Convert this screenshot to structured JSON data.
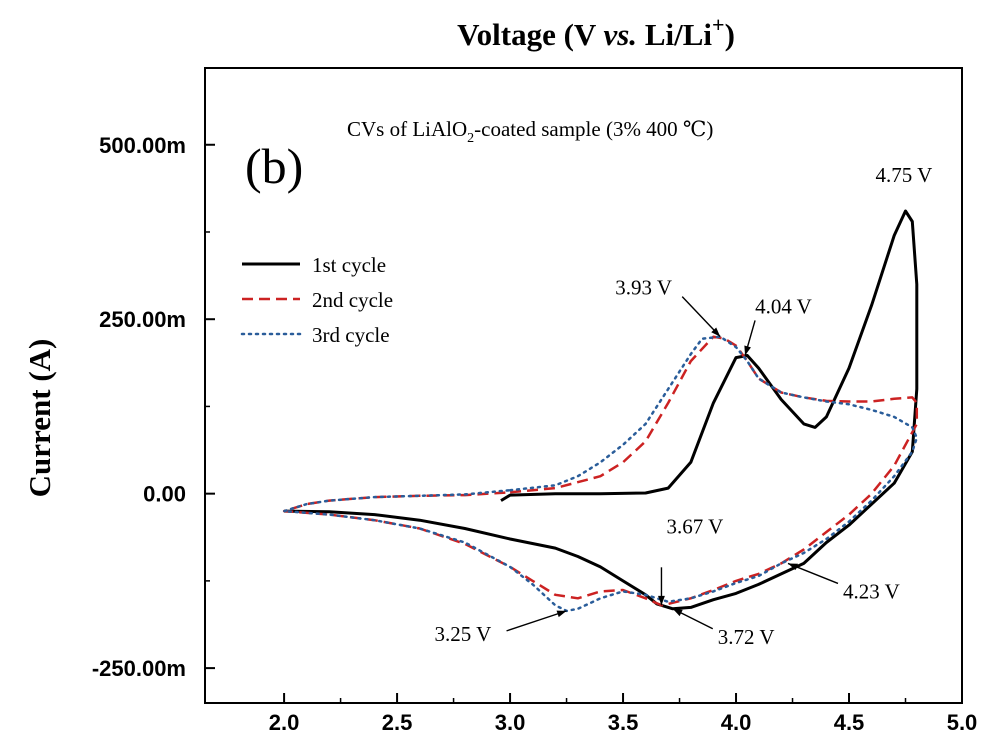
{
  "chart_data": {
    "type": "line",
    "panel_label": "(b)",
    "title_parts": [
      "CVs of LiAlO",
      "2",
      "-coated sample (3% 400 ℃)"
    ],
    "xlabel": "",
    "top_label_parts": [
      "Voltage (V ",
      "vs.",
      " Li/Li",
      "+",
      ")"
    ],
    "ylabel": "Current (A)",
    "xlim": [
      1.65,
      5.0
    ],
    "ylim": [
      -300,
      610
    ],
    "x_ticks": [
      2.0,
      2.5,
      3.0,
      3.5,
      4.0,
      4.5,
      5.0
    ],
    "x_tick_labels": [
      "2.0",
      "2.5",
      "3.0",
      "3.5",
      "4.0",
      "4.5",
      "5.0"
    ],
    "y_ticks": [
      -250,
      0,
      250,
      500
    ],
    "y_tick_labels": [
      "-250.00m",
      "0.00",
      "250.00m",
      "500.00m"
    ],
    "legend": {
      "placement": "upper-left"
    },
    "series": [
      {
        "name": "1st cycle",
        "color": "#000000",
        "style": "solid",
        "points": [
          [
            2.96,
            -10
          ],
          [
            3.0,
            -2
          ],
          [
            3.2,
            0
          ],
          [
            3.4,
            0
          ],
          [
            3.6,
            1
          ],
          [
            3.7,
            8
          ],
          [
            3.8,
            45
          ],
          [
            3.9,
            130
          ],
          [
            4.0,
            195
          ],
          [
            4.05,
            198
          ],
          [
            4.1,
            180
          ],
          [
            4.2,
            135
          ],
          [
            4.3,
            100
          ],
          [
            4.35,
            95
          ],
          [
            4.4,
            110
          ],
          [
            4.5,
            180
          ],
          [
            4.6,
            270
          ],
          [
            4.7,
            370
          ],
          [
            4.75,
            405
          ],
          [
            4.78,
            390
          ],
          [
            4.8,
            300
          ],
          [
            4.8,
            150
          ],
          [
            4.78,
            60
          ],
          [
            4.7,
            15
          ],
          [
            4.6,
            -15
          ],
          [
            4.5,
            -45
          ],
          [
            4.4,
            -70
          ],
          [
            4.3,
            -100
          ],
          [
            4.2,
            -115
          ],
          [
            4.1,
            -130
          ],
          [
            4.0,
            -143
          ],
          [
            3.9,
            -152
          ],
          [
            3.8,
            -163
          ],
          [
            3.72,
            -165
          ],
          [
            3.65,
            -158
          ],
          [
            3.6,
            -145
          ],
          [
            3.5,
            -125
          ],
          [
            3.4,
            -105
          ],
          [
            3.3,
            -90
          ],
          [
            3.2,
            -78
          ],
          [
            3.0,
            -65
          ],
          [
            2.8,
            -50
          ],
          [
            2.6,
            -38
          ],
          [
            2.4,
            -30
          ],
          [
            2.2,
            -26
          ],
          [
            2.0,
            -25
          ]
        ]
      },
      {
        "name": "2nd cycle",
        "color": "#cc2222",
        "style": "dashed",
        "points": [
          [
            3.0,
            2
          ],
          [
            3.2,
            8
          ],
          [
            3.4,
            25
          ],
          [
            3.5,
            45
          ],
          [
            3.6,
            75
          ],
          [
            3.7,
            130
          ],
          [
            3.8,
            190
          ],
          [
            3.9,
            225
          ],
          [
            3.95,
            222
          ],
          [
            4.0,
            212
          ],
          [
            4.05,
            190
          ],
          [
            4.1,
            165
          ],
          [
            4.2,
            145
          ],
          [
            4.3,
            138
          ],
          [
            4.4,
            133
          ],
          [
            4.5,
            132
          ],
          [
            4.6,
            132
          ],
          [
            4.7,
            136
          ],
          [
            4.78,
            138
          ],
          [
            4.8,
            130
          ],
          [
            4.8,
            100
          ],
          [
            4.7,
            40
          ],
          [
            4.6,
            0
          ],
          [
            4.5,
            -30
          ],
          [
            4.4,
            -55
          ],
          [
            4.3,
            -80
          ],
          [
            4.2,
            -100
          ],
          [
            4.1,
            -115
          ],
          [
            4.0,
            -125
          ],
          [
            3.9,
            -138
          ],
          [
            3.8,
            -150
          ],
          [
            3.7,
            -158
          ],
          [
            3.67,
            -160
          ],
          [
            3.6,
            -150
          ],
          [
            3.5,
            -138
          ],
          [
            3.4,
            -140
          ],
          [
            3.3,
            -150
          ],
          [
            3.2,
            -145
          ],
          [
            3.1,
            -125
          ],
          [
            3.0,
            -105
          ],
          [
            2.8,
            -72
          ],
          [
            2.6,
            -50
          ],
          [
            2.4,
            -38
          ],
          [
            2.2,
            -30
          ],
          [
            2.0,
            -25
          ],
          [
            2.1,
            -15
          ],
          [
            2.2,
            -10
          ],
          [
            2.4,
            -5
          ],
          [
            2.6,
            -3
          ],
          [
            2.8,
            -2
          ],
          [
            3.0,
            2
          ]
        ]
      },
      {
        "name": "3rd cycle",
        "color": "#2a5d9a",
        "style": "dotted",
        "points": [
          [
            3.0,
            5
          ],
          [
            3.2,
            12
          ],
          [
            3.3,
            25
          ],
          [
            3.4,
            45
          ],
          [
            3.5,
            70
          ],
          [
            3.6,
            100
          ],
          [
            3.7,
            150
          ],
          [
            3.8,
            200
          ],
          [
            3.85,
            222
          ],
          [
            3.93,
            225
          ],
          [
            4.0,
            210
          ],
          [
            4.05,
            190
          ],
          [
            4.1,
            165
          ],
          [
            4.2,
            145
          ],
          [
            4.3,
            138
          ],
          [
            4.4,
            132
          ],
          [
            4.5,
            128
          ],
          [
            4.6,
            120
          ],
          [
            4.7,
            110
          ],
          [
            4.78,
            95
          ],
          [
            4.8,
            80
          ],
          [
            4.78,
            60
          ],
          [
            4.7,
            25
          ],
          [
            4.6,
            -10
          ],
          [
            4.5,
            -40
          ],
          [
            4.4,
            -65
          ],
          [
            4.3,
            -85
          ],
          [
            4.2,
            -100
          ],
          [
            4.1,
            -118
          ],
          [
            4.0,
            -128
          ],
          [
            3.9,
            -140
          ],
          [
            3.8,
            -150
          ],
          [
            3.7,
            -155
          ],
          [
            3.6,
            -145
          ],
          [
            3.5,
            -140
          ],
          [
            3.4,
            -150
          ],
          [
            3.3,
            -165
          ],
          [
            3.25,
            -168
          ],
          [
            3.2,
            -160
          ],
          [
            3.1,
            -130
          ],
          [
            3.0,
            -105
          ],
          [
            2.8,
            -70
          ],
          [
            2.6,
            -50
          ],
          [
            2.4,
            -38
          ],
          [
            2.2,
            -30
          ],
          [
            2.0,
            -25
          ],
          [
            2.1,
            -15
          ],
          [
            2.2,
            -10
          ],
          [
            2.4,
            -5
          ],
          [
            2.6,
            -3
          ],
          [
            2.8,
            -1
          ],
          [
            3.0,
            5
          ]
        ]
      }
    ],
    "annotations": [
      {
        "text": "4.75 V",
        "x": 4.75,
        "y": 405
      },
      {
        "text": "3.93 V",
        "x": 3.93,
        "y": 225
      },
      {
        "text": "4.04 V",
        "x": 4.04,
        "y": 198
      },
      {
        "text": "3.67 V",
        "x": 3.67,
        "y": -160
      },
      {
        "text": "4.23 V",
        "x": 4.23,
        "y": -100
      },
      {
        "text": "3.25 V",
        "x": 3.25,
        "y": -168
      },
      {
        "text": "3.72 V",
        "x": 3.72,
        "y": -165
      }
    ]
  }
}
